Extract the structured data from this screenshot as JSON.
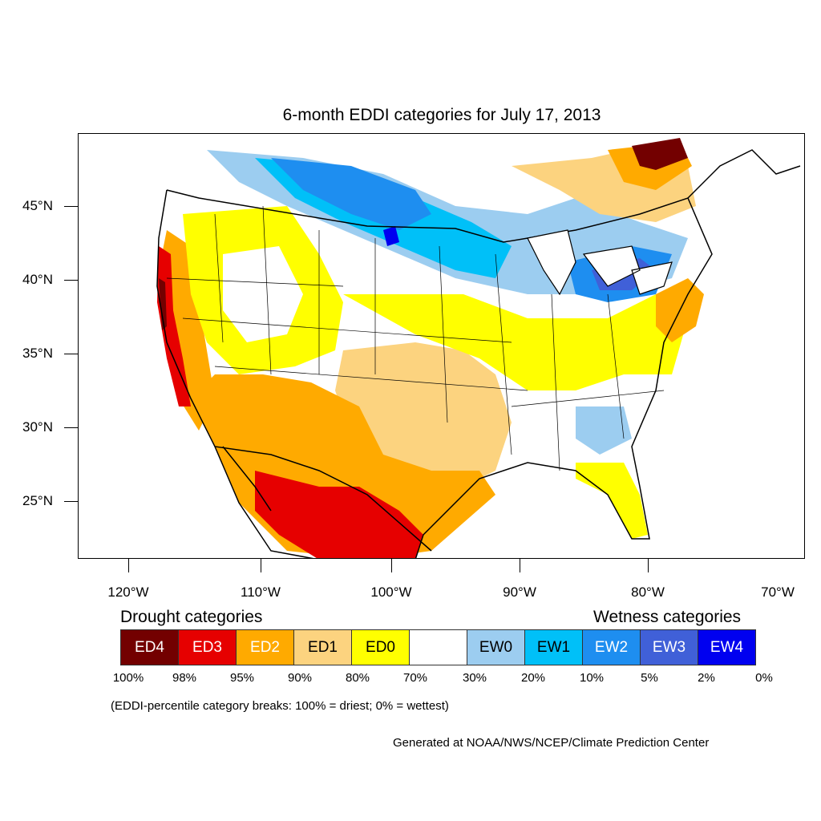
{
  "title": "6-month EDDI categories for July 17, 2013",
  "lat_ticks": [
    {
      "label": "45°N"
    },
    {
      "label": "40°N"
    },
    {
      "label": "35°N"
    },
    {
      "label": "30°N"
    },
    {
      "label": "25°N"
    }
  ],
  "lon_ticks": [
    {
      "label": "120°W"
    },
    {
      "label": "110°W"
    },
    {
      "label": "100°W"
    },
    {
      "label": "90°W"
    },
    {
      "label": "80°W"
    },
    {
      "label": "70°W"
    }
  ],
  "legend": {
    "drought_heading": "Drought categories",
    "wetness_heading": "Wetness categories",
    "categories": [
      {
        "label": "ED4",
        "color": "#730000",
        "text_color": "#ffffff"
      },
      {
        "label": "ED3",
        "color": "#e60000",
        "text_color": "#ffffff"
      },
      {
        "label": "ED2",
        "color": "#ffaa00",
        "text_color": "#ffffff"
      },
      {
        "label": "ED1",
        "color": "#fcd37f",
        "text_color": "#000000"
      },
      {
        "label": "ED0",
        "color": "#ffff00",
        "text_color": "#000000"
      },
      {
        "label": "",
        "color": "#ffffff",
        "text_color": "#000000"
      },
      {
        "label": "EW0",
        "color": "#9ccdf0",
        "text_color": "#000000"
      },
      {
        "label": "EW1",
        "color": "#00c0f8",
        "text_color": "#000000"
      },
      {
        "label": "EW2",
        "color": "#1e8ef0",
        "text_color": "#ffffff"
      },
      {
        "label": "EW3",
        "color": "#4060d8",
        "text_color": "#ffffff"
      },
      {
        "label": "EW4",
        "color": "#0000f0",
        "text_color": "#ffffff"
      }
    ],
    "breaks": [
      "100%",
      "98%",
      "95%",
      "90%",
      "80%",
      "70%",
      "30%",
      "20%",
      "10%",
      "5%",
      "2%",
      "0%"
    ]
  },
  "note": "(EDDI-percentile category breaks: 100% = driest; 0% = wettest)",
  "credit": "Generated at NOAA/NWS/NCEP/Climate Prediction Center"
}
